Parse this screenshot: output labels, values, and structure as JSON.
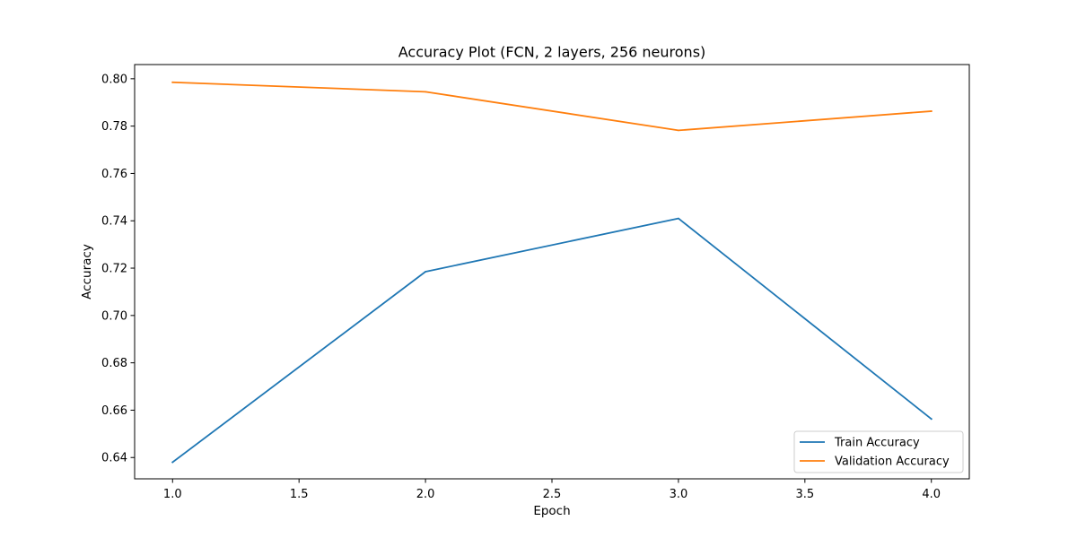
{
  "chart_data": {
    "type": "line",
    "title": "Accuracy Plot (FCN, 2 layers, 256 neurons)",
    "xlabel": "Epoch",
    "ylabel": "Accuracy",
    "x": [
      1.0,
      2.0,
      3.0,
      4.0
    ],
    "xlim": [
      0.85,
      4.15
    ],
    "ylim": [
      0.631,
      0.806
    ],
    "xticks": [
      1.0,
      1.5,
      2.0,
      2.5,
      3.0,
      3.5,
      4.0
    ],
    "xtick_labels": [
      "1.0",
      "1.5",
      "2.0",
      "2.5",
      "3.0",
      "3.5",
      "4.0"
    ],
    "yticks": [
      0.64,
      0.66,
      0.68,
      0.7,
      0.72,
      0.74,
      0.76,
      0.78,
      0.8
    ],
    "ytick_labels": [
      "0.64",
      "0.66",
      "0.68",
      "0.70",
      "0.72",
      "0.74",
      "0.76",
      "0.78",
      "0.80"
    ],
    "grid": false,
    "legend_position": "lower-right",
    "series": [
      {
        "name": "Train Accuracy",
        "color": "#1f77b4",
        "values": [
          0.638,
          0.7185,
          0.741,
          0.6563
        ]
      },
      {
        "name": "Validation Accuracy",
        "color": "#ff7f0e",
        "values": [
          0.7985,
          0.7945,
          0.7782,
          0.7863
        ]
      }
    ]
  }
}
